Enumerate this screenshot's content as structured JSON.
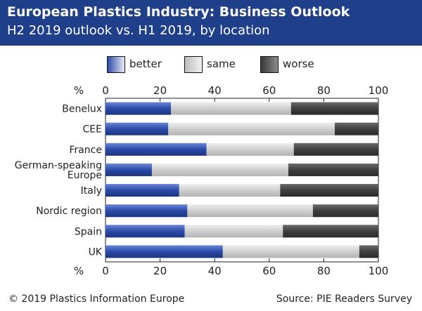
{
  "header": {
    "title": "European Plastics Industry: Business Outlook",
    "subtitle": "H2 2019 outlook vs. H1 2019, by location"
  },
  "footer": {
    "copyright": "© 2019 Plastics Information Europe",
    "source": "Source: PIE Readers Survey"
  },
  "chart_data": {
    "type": "bar",
    "orientation": "horizontal",
    "stacked": true,
    "title": "",
    "unit_label": "%",
    "xlim": [
      0,
      100
    ],
    "xticks": [
      0,
      20,
      40,
      60,
      80,
      100
    ],
    "legend_position": "top",
    "categories": [
      [
        "Benelux"
      ],
      [
        "CEE"
      ],
      [
        "France"
      ],
      [
        "German-speaking",
        "Europe"
      ],
      [
        "Italy"
      ],
      [
        "Nordic region"
      ],
      [
        "Spain"
      ],
      [
        "UK"
      ]
    ],
    "series": [
      {
        "name": "better",
        "color": "#2b4aa8",
        "values": [
          24,
          23,
          37,
          17,
          27,
          30,
          29,
          43
        ]
      },
      {
        "name": "same",
        "color": "#cfcfcf",
        "values": [
          44,
          61,
          32,
          50,
          37,
          46,
          36,
          50
        ]
      },
      {
        "name": "worse",
        "color": "#3f3f3f",
        "values": [
          32,
          16,
          31,
          33,
          36,
          24,
          35,
          7
        ]
      }
    ]
  }
}
